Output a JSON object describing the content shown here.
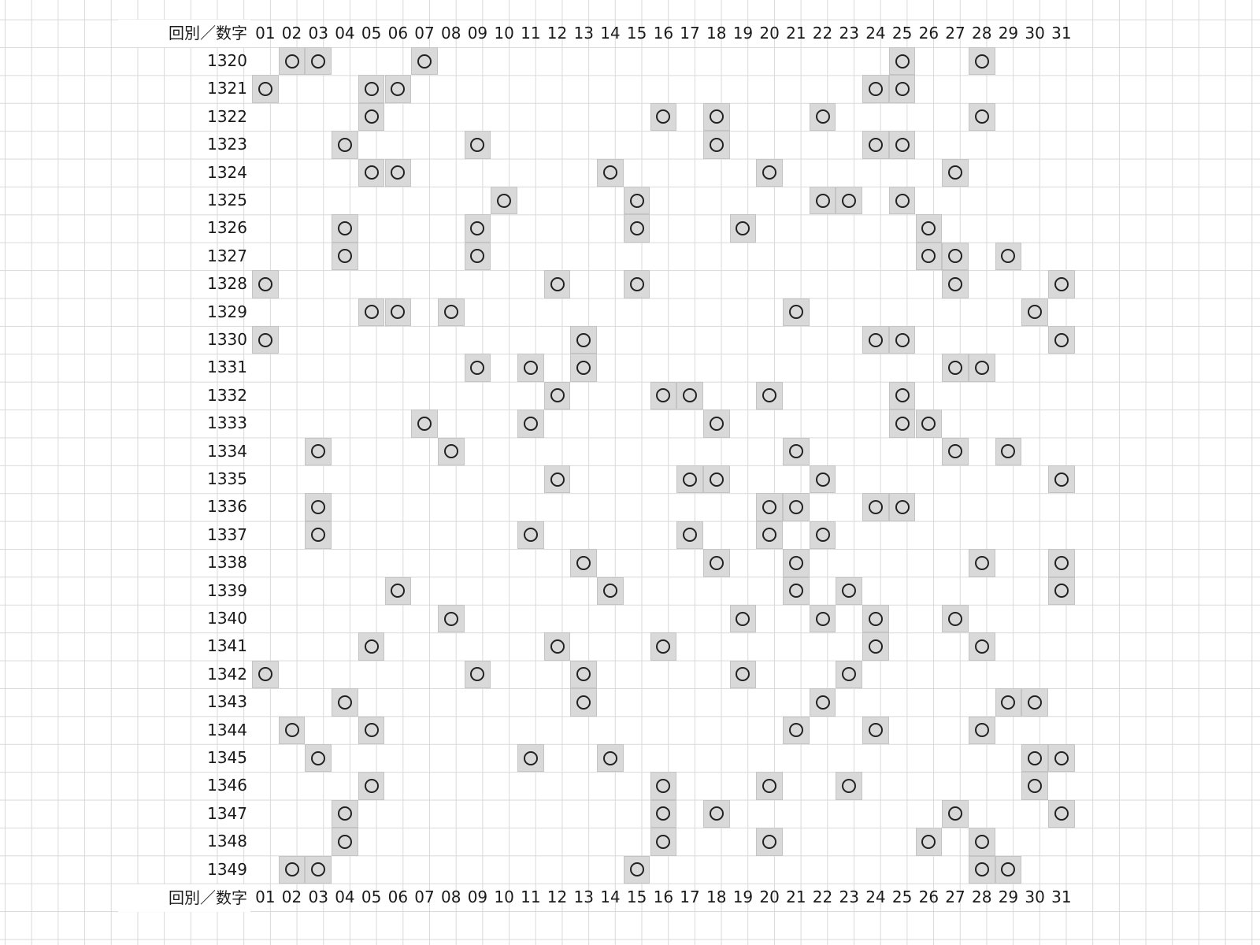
{
  "corner_label": "回別／数字",
  "numbers": [
    "01",
    "02",
    "03",
    "04",
    "05",
    "06",
    "07",
    "08",
    "09",
    "10",
    "11",
    "12",
    "13",
    "14",
    "15",
    "16",
    "17",
    "18",
    "19",
    "20",
    "21",
    "22",
    "23",
    "24",
    "25",
    "26",
    "27",
    "28",
    "29",
    "30",
    "31"
  ],
  "mark_symbol": "○",
  "colors": {
    "marked_cell": "#d9d9d9",
    "grid_line": "#d9d9d9",
    "mark": "#222222"
  },
  "rows": [
    {
      "round": "1320",
      "marked": [
        "02",
        "03",
        "07",
        "25",
        "28"
      ]
    },
    {
      "round": "1321",
      "marked": [
        "01",
        "05",
        "06",
        "24",
        "25"
      ]
    },
    {
      "round": "1322",
      "marked": [
        "05",
        "16",
        "18",
        "22",
        "28"
      ]
    },
    {
      "round": "1323",
      "marked": [
        "04",
        "09",
        "18",
        "24",
        "25"
      ]
    },
    {
      "round": "1324",
      "marked": [
        "05",
        "06",
        "14",
        "20",
        "27"
      ]
    },
    {
      "round": "1325",
      "marked": [
        "10",
        "15",
        "22",
        "23",
        "25"
      ]
    },
    {
      "round": "1326",
      "marked": [
        "04",
        "09",
        "15",
        "19",
        "26"
      ]
    },
    {
      "round": "1327",
      "marked": [
        "04",
        "09",
        "26",
        "27",
        "29"
      ]
    },
    {
      "round": "1328",
      "marked": [
        "01",
        "12",
        "15",
        "27",
        "31"
      ]
    },
    {
      "round": "1329",
      "marked": [
        "05",
        "06",
        "08",
        "21",
        "30"
      ]
    },
    {
      "round": "1330",
      "marked": [
        "01",
        "13",
        "24",
        "25",
        "31"
      ]
    },
    {
      "round": "1331",
      "marked": [
        "09",
        "11",
        "13",
        "27",
        "28"
      ]
    },
    {
      "round": "1332",
      "marked": [
        "12",
        "16",
        "17",
        "20",
        "25"
      ]
    },
    {
      "round": "1333",
      "marked": [
        "07",
        "11",
        "18",
        "25",
        "26"
      ]
    },
    {
      "round": "1334",
      "marked": [
        "03",
        "08",
        "21",
        "27",
        "29"
      ]
    },
    {
      "round": "1335",
      "marked": [
        "12",
        "17",
        "18",
        "22",
        "31"
      ]
    },
    {
      "round": "1336",
      "marked": [
        "03",
        "20",
        "21",
        "24",
        "25"
      ]
    },
    {
      "round": "1337",
      "marked": [
        "03",
        "11",
        "17",
        "20",
        "22"
      ]
    },
    {
      "round": "1338",
      "marked": [
        "13",
        "18",
        "21",
        "28",
        "31"
      ]
    },
    {
      "round": "1339",
      "marked": [
        "06",
        "14",
        "21",
        "23",
        "31"
      ]
    },
    {
      "round": "1340",
      "marked": [
        "08",
        "19",
        "22",
        "24",
        "27"
      ]
    },
    {
      "round": "1341",
      "marked": [
        "05",
        "12",
        "16",
        "24",
        "28"
      ]
    },
    {
      "round": "1342",
      "marked": [
        "01",
        "09",
        "13",
        "19",
        "23"
      ]
    },
    {
      "round": "1343",
      "marked": [
        "04",
        "13",
        "22",
        "29",
        "30"
      ]
    },
    {
      "round": "1344",
      "marked": [
        "02",
        "05",
        "21",
        "24",
        "28"
      ]
    },
    {
      "round": "1345",
      "marked": [
        "03",
        "11",
        "14",
        "30",
        "31"
      ]
    },
    {
      "round": "1346",
      "marked": [
        "05",
        "16",
        "20",
        "23",
        "30"
      ]
    },
    {
      "round": "1347",
      "marked": [
        "04",
        "16",
        "18",
        "27",
        "31"
      ]
    },
    {
      "round": "1348",
      "marked": [
        "04",
        "16",
        "20",
        "26",
        "28"
      ]
    },
    {
      "round": "1349",
      "marked": [
        "02",
        "03",
        "15",
        "28",
        "29"
      ]
    }
  ]
}
